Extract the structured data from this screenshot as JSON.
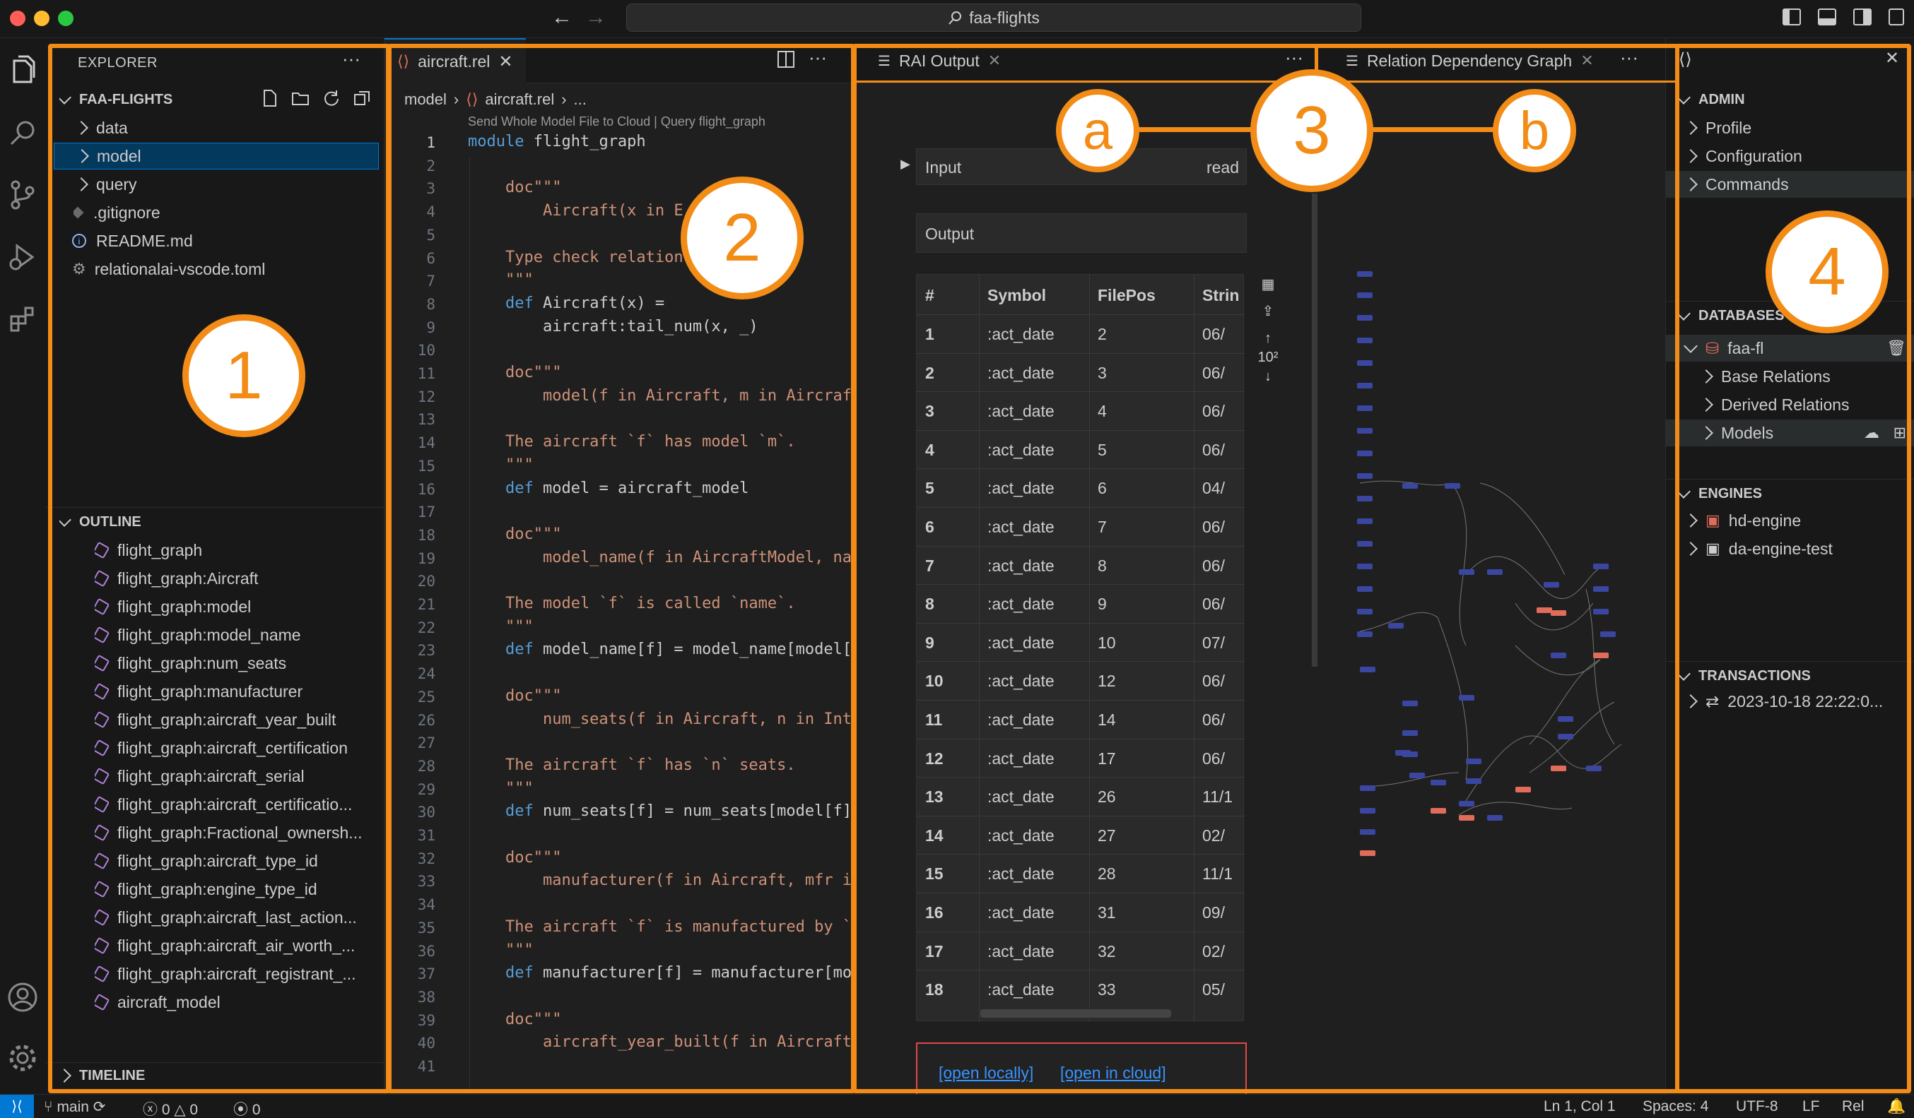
{
  "titlebar": {
    "search_text": "faa-flights"
  },
  "colors": {
    "accent": "#f28c17",
    "selection": "#04395e",
    "status_blue": "#0078d4"
  },
  "explorer": {
    "title": "EXPLORER",
    "workspace": "FAA-FLIGHTS",
    "items": [
      {
        "label": "data",
        "icon": "chevron-right-icon"
      },
      {
        "label": "model",
        "icon": "chevron-right-icon",
        "selected": true
      },
      {
        "label": "query",
        "icon": "chevron-right-icon"
      },
      {
        "label": ".gitignore",
        "icon": "diamond-icon"
      },
      {
        "label": "README.md",
        "icon": "info-icon"
      },
      {
        "label": "relationalai-vscode.toml",
        "icon": "gear-icon"
      }
    ]
  },
  "outline": {
    "title": "OUTLINE",
    "items": [
      "flight_graph",
      "flight_graph:Aircraft",
      "flight_graph:model",
      "flight_graph:model_name",
      "flight_graph:num_seats",
      "flight_graph:manufacturer",
      "flight_graph:aircraft_year_built",
      "flight_graph:aircraft_certification",
      "flight_graph:aircraft_serial",
      "flight_graph:aircraft_certificatio...",
      "flight_graph:Fractional_ownersh...",
      "flight_graph:aircraft_type_id",
      "flight_graph:engine_type_id",
      "flight_graph:aircraft_last_action...",
      "flight_graph:aircraft_air_worth_...",
      "flight_graph:aircraft_registrant_...",
      "aircraft_model"
    ]
  },
  "timeline": {
    "title": "TIMELINE"
  },
  "editor": {
    "tab": "aircraft.rel",
    "breadcrumb": [
      "model",
      "aircraft.rel",
      "..."
    ],
    "codelens": "Send Whole Model File to Cloud | Query flight_graph",
    "lines": [
      "module flight_graph",
      "",
      "    doc\"\"\"",
      "        Aircraft(x in E",
      "",
      "    Type check relation",
      "    \"\"\"",
      "    def Aircraft(x) =",
      "        aircraft:tail_num(x, _)",
      "",
      "    doc\"\"\"",
      "        model(f in Aircraft, m in Aircraf",
      "",
      "    The aircraft `f` has model `m`.",
      "    \"\"\"",
      "    def model = aircraft_model",
      "",
      "    doc\"\"\"",
      "        model_name(f in AircraftModel, na",
      "",
      "    The model `f` is called `name`.",
      "    \"\"\"",
      "    def model_name[f] = model_name[model[",
      "",
      "    doc\"\"\"",
      "        num_seats(f in Aircraft, n in Int",
      "",
      "    The aircraft `f` has `n` seats.",
      "    \"\"\"",
      "    def num_seats[f] = num_seats[model[f]",
      "",
      "    doc\"\"\"",
      "        manufacturer(f in Aircraft, mfr i",
      "",
      "    The aircraft `f` is manufactured by `",
      "    \"\"\"",
      "    def manufacturer[f] = manufacturer[mo",
      "",
      "    doc\"\"\"",
      "        aircraft_year_built(f in Aircraft",
      ""
    ]
  },
  "rai_output": {
    "tab": "RAI Output",
    "input_label": "Input",
    "input_mode": "read",
    "output_label": "Output",
    "columns": [
      "#",
      "Symbol",
      "FilePos",
      "Strin"
    ],
    "rows": [
      [
        "1",
        ":act_date",
        "2",
        "06/"
      ],
      [
        "2",
        ":act_date",
        "3",
        "06/"
      ],
      [
        "3",
        ":act_date",
        "4",
        "06/"
      ],
      [
        "4",
        ":act_date",
        "5",
        "06/"
      ],
      [
        "5",
        ":act_date",
        "6",
        "04/"
      ],
      [
        "6",
        ":act_date",
        "7",
        "06/"
      ],
      [
        "7",
        ":act_date",
        "8",
        "06/"
      ],
      [
        "8",
        ":act_date",
        "9",
        "06/"
      ],
      [
        "9",
        ":act_date",
        "10",
        "07/"
      ],
      [
        "10",
        ":act_date",
        "12",
        "06/"
      ],
      [
        "11",
        ":act_date",
        "14",
        "06/"
      ],
      [
        "12",
        ":act_date",
        "17",
        "06/"
      ],
      [
        "13",
        ":act_date",
        "26",
        "11/1"
      ],
      [
        "14",
        ":act_date",
        "27",
        "02/"
      ],
      [
        "15",
        ":act_date",
        "28",
        "11/1"
      ],
      [
        "16",
        ":act_date",
        "31",
        "09/"
      ],
      [
        "17",
        ":act_date",
        "32",
        "02/"
      ],
      [
        "18",
        ":act_date",
        "33",
        "05/"
      ]
    ],
    "exponent_label": "10²",
    "link_local": "[open locally]",
    "link_cloud": "[open in cloud]"
  },
  "graph": {
    "tab": "Relation Dependency Graph"
  },
  "rai_panel": {
    "admin": {
      "title": "ADMIN",
      "items": [
        "Profile",
        "Configuration",
        "Commands"
      ]
    },
    "databases": {
      "title": "DATABASES",
      "db": "faa-fl",
      "children": [
        "Base Relations",
        "Derived Relations",
        "Models"
      ]
    },
    "engines": {
      "title": "ENGINES",
      "items": [
        "hd-engine",
        "da-engine-test"
      ]
    },
    "transactions": {
      "title": "TRANSACTIONS",
      "items": [
        "2023-10-18 22:22:0..."
      ]
    }
  },
  "statusbar": {
    "branch": "main",
    "errors": "0",
    "warnings": "0",
    "ports": "0",
    "cursor": "Ln 1, Col 1",
    "spaces": "Spaces: 4",
    "encoding": "UTF-8",
    "eol": "LF",
    "language": "Rel"
  },
  "callouts": {
    "one": "1",
    "two": "2",
    "three": "3",
    "a": "a",
    "b": "b",
    "four": "4"
  }
}
